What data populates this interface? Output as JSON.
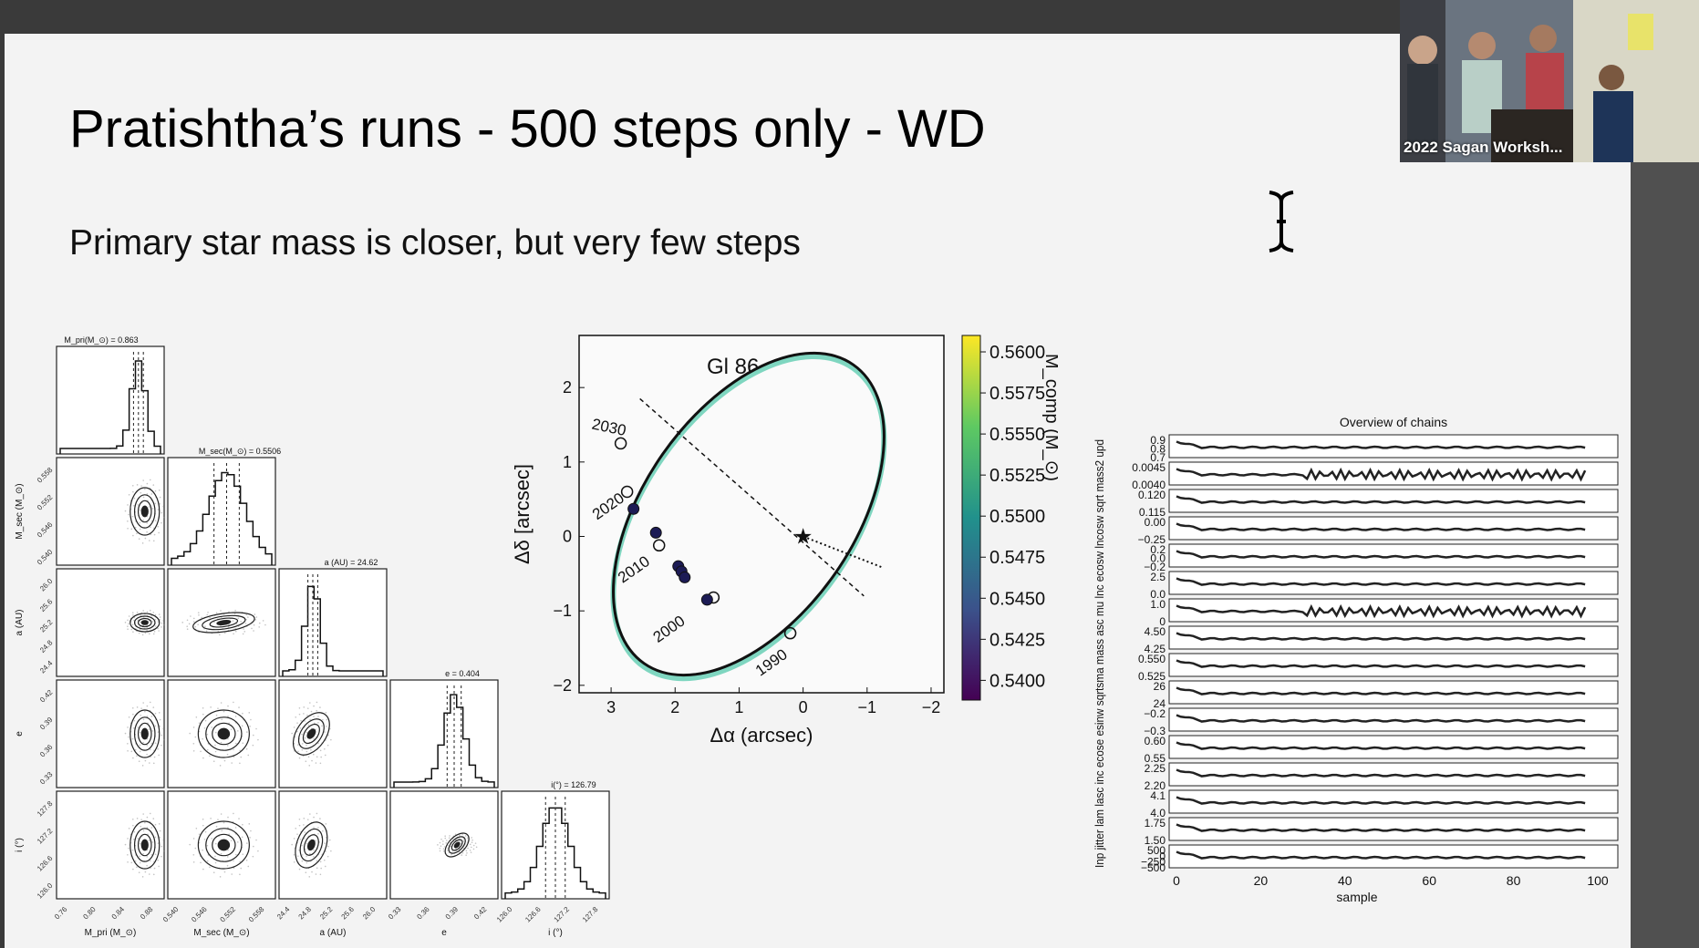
{
  "slide": {
    "title": "Pratishtha’s runs - 500 steps only - WD",
    "subtitle": "Primary star mass is closer, but very few steps"
  },
  "video": {
    "label": "2022 Sagan Worksh..."
  },
  "colors": {
    "slide_bg": "#f3f3f3",
    "ellipse": "#0b3d2e",
    "chain": "#222222"
  },
  "corner_plot": {
    "headers": [
      "M_pri(M_⊙) = 0.863",
      "M_sec(M_⊙) = 0.5506",
      "a (AU) = 24.62",
      "e = 0.404",
      "i(°) = 126.79"
    ],
    "xlabels": [
      "M_pri (M_⊙)",
      "M_sec (M_⊙)",
      "a (AU)",
      "e",
      "i (°)"
    ],
    "ylabels": [
      "M_sec (M_⊙)",
      "a (AU)",
      "e",
      "i (°)"
    ],
    "xticks": [
      [
        "0.76",
        "0.80",
        "0.84",
        "0.88"
      ],
      [
        "0.540",
        "0.546",
        "0.552",
        "0.558"
      ],
      [
        "24.4",
        "24.8",
        "25.2",
        "25.6",
        "26.0"
      ],
      [
        "0.33",
        "0.36",
        "0.39",
        "0.42"
      ],
      [
        "126.0",
        "126.6",
        "127.2",
        "127.8"
      ]
    ],
    "yticks": [
      [
        "0.558",
        "0.552",
        "0.546",
        "0.540"
      ],
      [
        "26.0",
        "25.6",
        "25.2",
        "24.8",
        "24.4"
      ],
      [
        "0.42",
        "0.39",
        "0.36",
        "0.33"
      ],
      [
        "127.8",
        "127.2",
        "126.6",
        "126.0"
      ]
    ]
  },
  "chart_data": [
    {
      "type": "scatter",
      "title": "Gl 86",
      "xlabel": "Δα (arcsec)",
      "ylabel": "Δδ [arcsec]",
      "xlim": [
        3.5,
        -2.2
      ],
      "ylim": [
        -2.1,
        2.7
      ],
      "xticks": [
        "3",
        "2",
        "1",
        "0",
        "−1",
        "−2"
      ],
      "yticks": [
        "2",
        "1",
        "0",
        "−1",
        "−2"
      ],
      "year_labels": [
        "2030",
        "2020",
        "2010",
        "2000",
        "1990"
      ],
      "year_positions": [
        {
          "x": 3.05,
          "y": 1.4
        },
        {
          "x": 3.0,
          "y": 0.35
        },
        {
          "x": 2.6,
          "y": -0.5
        },
        {
          "x": 2.05,
          "y": -1.3
        },
        {
          "x": 0.45,
          "y": -1.75
        }
      ],
      "open_points": [
        {
          "x": 2.85,
          "y": 1.25
        },
        {
          "x": 2.75,
          "y": 0.6
        },
        {
          "x": 2.25,
          "y": -0.12
        },
        {
          "x": 1.4,
          "y": -0.82
        },
        {
          "x": 0.2,
          "y": -1.3
        }
      ],
      "filled_points": [
        {
          "x": 2.65,
          "y": 0.37
        },
        {
          "x": 2.3,
          "y": 0.05
        },
        {
          "x": 1.95,
          "y": -0.4
        },
        {
          "x": 1.9,
          "y": -0.47
        },
        {
          "x": 1.85,
          "y": -0.55
        },
        {
          "x": 1.5,
          "y": -0.85
        }
      ],
      "star": {
        "x": 0.0,
        "y": 0.0
      },
      "colorbar": {
        "label": "M_comp (M_⊙)",
        "ticks": [
          "0.5600",
          "0.5575",
          "0.5550",
          "0.5525",
          "0.5500",
          "0.5475",
          "0.5450",
          "0.5425",
          "0.5400"
        ],
        "range": [
          0.5388,
          0.561
        ]
      }
    },
    {
      "type": "line",
      "title": "Overview of chains",
      "xlabel": "sample",
      "xlim": [
        0,
        100
      ],
      "xticks": [
        "0",
        "20",
        "40",
        "60",
        "80",
        "100"
      ],
      "ylabels": [
        "Inp jitter",
        "lam",
        "lasc",
        "inc",
        "ecose",
        "esinw",
        "sqrtsma",
        "mass",
        "asc",
        "mu",
        "lnc",
        "ecosw",
        "lncosw",
        "sqrt",
        "mass2",
        "upd"
      ],
      "panels": [
        {
          "yticks": [
            "0.9",
            "0.8",
            "0.7"
          ],
          "level": 0.8
        },
        {
          "yticks": [
            "0.0045",
            "0.0040"
          ],
          "level": 0.0042
        },
        {
          "yticks": [
            "0.120",
            "0.115"
          ],
          "level": 0.117
        },
        {
          "yticks": [
            "0.00",
            "−0.25"
          ],
          "level": -0.1
        },
        {
          "yticks": [
            "0.2",
            "0.0",
            "−0.2"
          ],
          "level": 0.0
        },
        {
          "yticks": [
            "2.5",
            "0.0"
          ],
          "level": 1.0
        },
        {
          "yticks": [
            "1.0",
            "0"
          ],
          "level": 0.3
        },
        {
          "yticks": [
            "4.50",
            "4.25"
          ],
          "level": 4.4
        },
        {
          "yticks": [
            "0.550",
            "0.525"
          ],
          "level": 0.54
        },
        {
          "yticks": [
            "26",
            "24"
          ],
          "level": 24.6
        },
        {
          "yticks": [
            "−0.2",
            "−0.3"
          ],
          "level": -0.25
        },
        {
          "yticks": [
            "0.60",
            "0.55"
          ],
          "level": 0.58
        },
        {
          "yticks": [
            "2.25",
            "2.20"
          ],
          "level": 2.22
        },
        {
          "yticks": [
            "4.1",
            "4.0"
          ],
          "level": 4.05
        },
        {
          "yticks": [
            "1.75",
            "1.50"
          ],
          "level": 1.6
        },
        {
          "yticks": [
            "500",
            "0",
            "−250",
            "−500"
          ],
          "level": -200
        }
      ]
    }
  ]
}
